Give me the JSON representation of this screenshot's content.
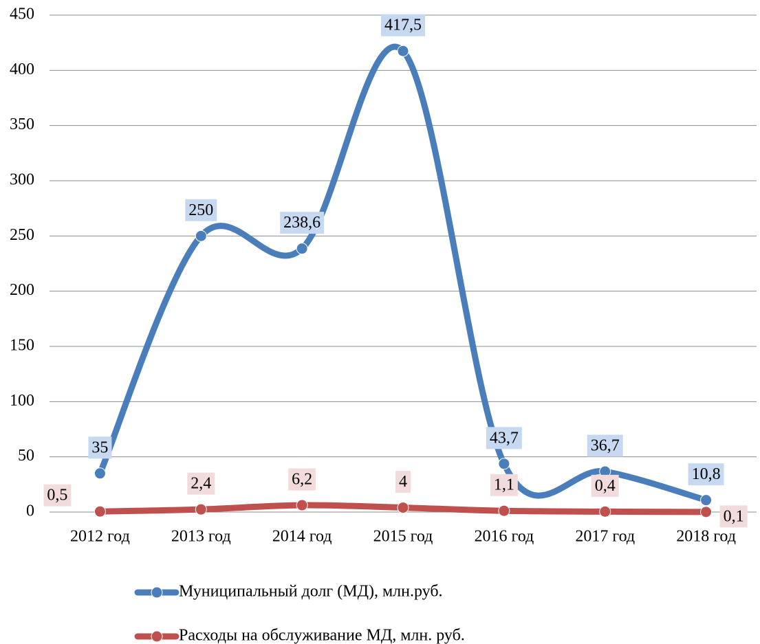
{
  "chart_data": {
    "type": "line",
    "categories": [
      "2012 год",
      "2013 год",
      "2014 год",
      "2015 год",
      "2016 год",
      "2017 год",
      "2018 год"
    ],
    "series": [
      {
        "name": "Муниципальный долг (МД), млн.руб.",
        "color": "#4a7ebb",
        "label_bg": "#c6d9f1",
        "values": [
          35,
          250,
          238.6,
          417.5,
          43.7,
          36.7,
          10.8
        ],
        "value_labels": [
          "35",
          "250",
          "238,6",
          "417,5",
          "43,7",
          "36,7",
          "10,8"
        ]
      },
      {
        "name": "Расходы на обслуживание МД, млн. руб.",
        "color": "#c0504d",
        "label_bg": "#f2dcdb",
        "values": [
          0.5,
          2.4,
          6.2,
          4,
          1.1,
          0.4,
          0.1
        ],
        "value_labels": [
          "0,5",
          "2,4",
          "6,2",
          "4",
          "1,1",
          "0,4",
          "0,1"
        ]
      }
    ],
    "ylim": [
      0,
      450
    ],
    "yticks": [
      0,
      50,
      100,
      150,
      200,
      250,
      300,
      350,
      400,
      450
    ],
    "grid": true
  }
}
